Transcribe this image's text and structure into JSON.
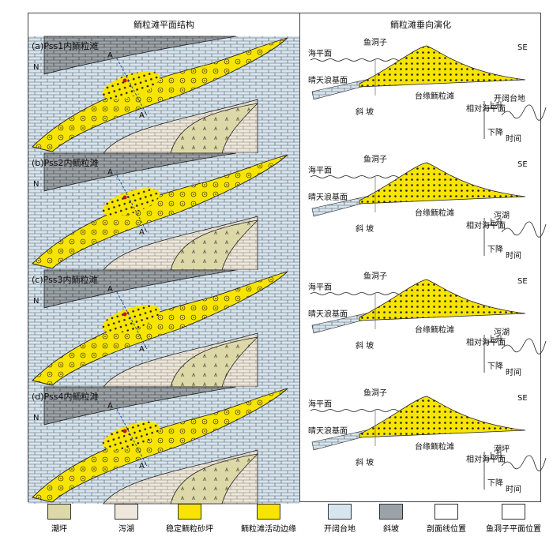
{
  "headers": {
    "left": "鲕粒滩平面结构",
    "right": "鲕粒滩垂向演化"
  },
  "panels": [
    {
      "title": "(a)Pss1内鲕粒滩",
      "lagoon_label": "开阔台地"
    },
    {
      "title": "(b)Pss2内鲕粒滩",
      "lagoon_label": "泻湖"
    },
    {
      "title": "(c)Pss3内鲕粒滩",
      "lagoon_label": "泻湖"
    },
    {
      "title": "(d)Pss4内鲕粒滩",
      "lagoon_label": "潮坪"
    }
  ],
  "labels": {
    "north": "N",
    "A": "A",
    "A_prime": "A'",
    "sea_level": "海平面",
    "fair_weather_base": "晴天浪基面",
    "locality": "鱼洞子",
    "direction": "SE",
    "slope": "斜 坡",
    "platform_shoal": "台缘鲕粒滩",
    "rel_sea_level": "相对海平面",
    "rise": "上升",
    "fall": "下降",
    "time": "时间"
  },
  "legend": [
    {
      "key": "tidal_flat",
      "label": "潮坪"
    },
    {
      "key": "lagoon",
      "label": "泻湖"
    },
    {
      "key": "stable_oolite",
      "label": "稳定鲕粒砂坪"
    },
    {
      "key": "active_margin",
      "label": "鲕粒滩活动边缘"
    },
    {
      "key": "open_platform",
      "label": "开阔台地"
    },
    {
      "key": "slope",
      "label": "斜坡"
    },
    {
      "key": "section_line",
      "label": "剖面线位置"
    },
    {
      "key": "locality_mark",
      "label": "鱼洞子平面位置"
    }
  ],
  "colors": {
    "yellow": "#f7e400",
    "tidal": "#ddd8a8",
    "lagoon": "#efe7dc",
    "open": "#d6e6ee",
    "slope": "#9ca3a8"
  }
}
